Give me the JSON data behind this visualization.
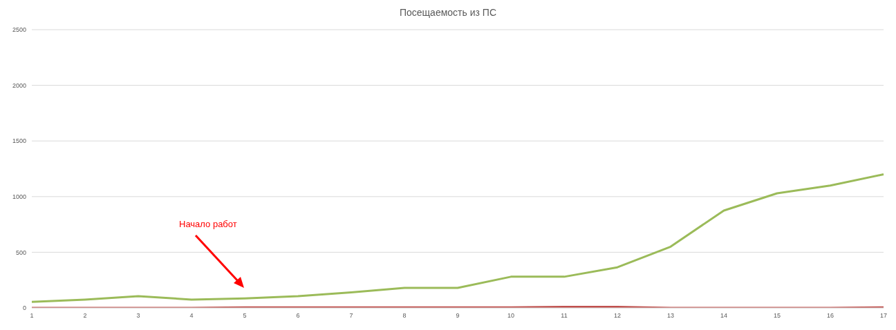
{
  "chart_data": {
    "type": "line",
    "title": "Посещаемость из ПС",
    "categories": [
      "1",
      "2",
      "3",
      "4",
      "5",
      "6",
      "7",
      "8",
      "9",
      "10",
      "11",
      "12",
      "13",
      "14",
      "15",
      "16",
      "17"
    ],
    "series": [
      {
        "color": "#9bbb59",
        "values": [
          55,
          75,
          105,
          75,
          85,
          105,
          140,
          180,
          180,
          280,
          280,
          365,
          550,
          875,
          1030,
          1100,
          1200
        ]
      },
      {
        "color": "#c0504d",
        "values": [
          0,
          0,
          0,
          0,
          5,
          5,
          5,
          5,
          5,
          5,
          10,
          10,
          0,
          0,
          0,
          0,
          5
        ]
      }
    ],
    "ylim": [
      0,
      2500
    ],
    "yticks": [
      0,
      500,
      1000,
      1500,
      2000,
      2500
    ],
    "grid": "y",
    "legend": false,
    "marker": "none",
    "line_style": "solid",
    "annotations": [
      "Начало работ"
    ]
  }
}
